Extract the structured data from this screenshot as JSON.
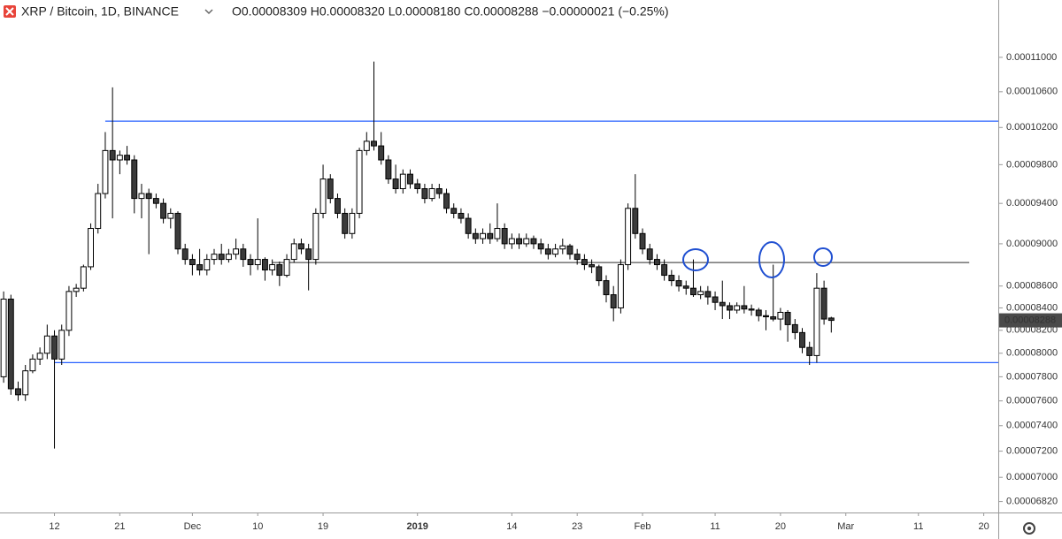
{
  "header": {
    "symbol": "XRP / Bitcoin, 1D, BINANCE",
    "ohlc": "O0.00008309 H0.00008320 L0.00008180 C0.00008288 −0.00000021 (−0.25%)"
  },
  "chart_data": {
    "type": "candlestick",
    "log_scale": true,
    "up_color": "#ffffff",
    "down_color": "#3b3b3b",
    "outline_color": "#000000",
    "x": [
      0,
      1,
      2,
      3,
      4,
      5,
      6,
      7,
      8,
      9,
      10,
      11,
      12,
      13,
      14,
      15,
      16,
      17,
      18,
      19,
      20,
      21,
      22,
      23,
      24,
      25,
      26,
      27,
      28,
      29,
      30,
      31,
      32,
      33,
      34,
      35,
      36,
      37,
      38,
      39,
      40,
      41,
      42,
      43,
      44,
      45,
      46,
      47,
      48,
      49,
      50,
      51,
      52,
      53,
      54,
      55,
      56,
      57,
      58,
      59,
      60,
      61,
      62,
      63,
      64,
      65,
      66,
      67,
      68,
      69,
      70,
      71,
      72,
      73,
      74,
      75,
      76,
      77,
      78,
      79,
      80,
      81,
      82,
      83,
      84,
      85,
      86,
      87,
      88,
      89,
      90,
      91,
      92,
      93,
      94,
      95,
      96,
      97,
      98,
      99,
      100,
      101,
      102,
      103,
      104,
      105,
      106,
      107,
      108,
      109,
      110,
      111,
      112,
      113,
      114
    ],
    "open": [
      7.8e-05,
      8.48e-05,
      7.7e-05,
      7.65e-05,
      7.85e-05,
      7.95e-05,
      8e-05,
      8.15e-05,
      7.95e-05,
      8.2e-05,
      8.55e-05,
      8.58e-05,
      8.78e-05,
      9.15e-05,
      9.5e-05,
      9.95e-05,
      9.85e-05,
      9.9e-05,
      9.85e-05,
      9.45e-05,
      9.5e-05,
      9.45e-05,
      9.4e-05,
      9.25e-05,
      9.3e-05,
      8.95e-05,
      8.85e-05,
      8.8e-05,
      8.75e-05,
      8.85e-05,
      8.9e-05,
      8.85e-05,
      8.9e-05,
      8.95e-05,
      8.85e-05,
      8.8e-05,
      8.85e-05,
      8.75e-05,
      8.8e-05,
      8.7e-05,
      8.85e-05,
      9e-05,
      8.95e-05,
      8.85e-05,
      9.3e-05,
      9.65e-05,
      9.45e-05,
      9.3e-05,
      9.1e-05,
      9.3e-05,
      9.95e-05,
      0.0001005,
      0.0001,
      9.85e-05,
      9.65e-05,
      9.55e-05,
      9.7e-05,
      9.6e-05,
      9.55e-05,
      9.45e-05,
      9.55e-05,
      9.5e-05,
      9.35e-05,
      9.3e-05,
      9.25e-05,
      9.1e-05,
      9.05e-05,
      9.1e-05,
      9.05e-05,
      9.15e-05,
      9e-05,
      9.05e-05,
      9e-05,
      9.05e-05,
      9e-05,
      8.95e-05,
      8.9e-05,
      8.95e-05,
      8.98e-05,
      8.9e-05,
      8.85e-05,
      8.8e-05,
      8.78e-05,
      8.65e-05,
      8.52e-05,
      8.4e-05,
      8.8e-05,
      9.35e-05,
      9.1e-05,
      8.95e-05,
      8.85e-05,
      8.8e-05,
      8.7e-05,
      8.65e-05,
      8.6e-05,
      8.58e-05,
      8.52e-05,
      8.55e-05,
      8.5e-05,
      8.45e-05,
      8.42e-05,
      8.38e-05,
      8.42e-05,
      8.39e-05,
      8.38e-05,
      8.33e-05,
      8.32e-05,
      8.3e-05,
      8.36e-05,
      8.25e-05,
      8.18e-05,
      8.05e-05,
      7.98e-05,
      8.58e-05,
      8.309e-05
    ],
    "high": [
      8.55e-05,
      8.52e-05,
      7.76e-05,
      7.9e-05,
      7.99e-05,
      8.05e-05,
      8.25e-05,
      8.2e-05,
      8.25e-05,
      8.6e-05,
      8.62e-05,
      8.8e-05,
      9.2e-05,
      9.6e-05,
      0.0001015,
      0.0001065,
      9.95e-05,
      0.0001,
      9.9e-05,
      9.6e-05,
      9.55e-05,
      9.5e-05,
      9.45e-05,
      9.35e-05,
      9.32e-05,
      9e-05,
      8.9e-05,
      8.95e-05,
      8.9e-05,
      8.95e-05,
      9e-05,
      8.95e-05,
      9.05e-05,
      9e-05,
      8.9e-05,
      9.25e-05,
      8.87e-05,
      8.85e-05,
      8.83e-05,
      8.9e-05,
      9.05e-05,
      9.05e-05,
      9e-05,
      9.35e-05,
      9.8e-05,
      9.7e-05,
      9.5e-05,
      9.35e-05,
      9.35e-05,
      9.98e-05,
      0.0001015,
      0.0001095,
      0.0001015,
      9.9e-05,
      9.8e-05,
      9.75e-05,
      9.75e-05,
      9.65e-05,
      9.6e-05,
      9.6e-05,
      9.6e-05,
      9.55e-05,
      9.4e-05,
      9.35e-05,
      9.3e-05,
      9.15e-05,
      9.15e-05,
      9.2e-05,
      9.4e-05,
      9.2e-05,
      9.1e-05,
      9.1e-05,
      9.1e-05,
      9.08e-05,
      9.05e-05,
      9e-05,
      9e-05,
      9.05e-05,
      9e-05,
      8.95e-05,
      8.9e-05,
      8.85e-05,
      8.8e-05,
      8.7e-05,
      8.6e-05,
      8.85e-05,
      9.4e-05,
      9.7e-05,
      9.15e-05,
      9e-05,
      8.9e-05,
      8.85e-05,
      8.75e-05,
      8.7e-05,
      8.65e-05,
      8.85e-05,
      8.6e-05,
      8.6e-05,
      8.55e-05,
      8.65e-05,
      8.45e-05,
      8.45e-05,
      8.6e-05,
      8.43e-05,
      8.4e-05,
      8.38e-05,
      8.8e-05,
      8.4e-05,
      8.38e-05,
      8.3e-05,
      8.22e-05,
      8.1e-05,
      8.72e-05,
      8.65e-05,
      8.32e-05
    ],
    "low": [
      7.75e-05,
      7.65e-05,
      7.6e-05,
      7.6e-05,
      7.83e-05,
      7.9e-05,
      7.95e-05,
      7.22e-05,
      7.9e-05,
      8.15e-05,
      8.5e-05,
      8.55e-05,
      8.75e-05,
      9.1e-05,
      9.45e-05,
      9.25e-05,
      9.7e-05,
      9.8e-05,
      9.3e-05,
      9.25e-05,
      8.9e-05,
      9.35e-05,
      9.2e-05,
      9.15e-05,
      8.9e-05,
      8.8e-05,
      8.7e-05,
      8.7e-05,
      8.7e-05,
      8.8e-05,
      8.8e-05,
      8.82e-05,
      8.85e-05,
      8.78e-05,
      8.7e-05,
      8.75e-05,
      8.65e-05,
      8.7e-05,
      8.6e-05,
      8.68e-05,
      8.82e-05,
      8.9e-05,
      8.56e-05,
      8.8e-05,
      9.25e-05,
      9.4e-05,
      9.25e-05,
      9.05e-05,
      9.05e-05,
      9.25e-05,
      9.9e-05,
      9.95e-05,
      9.8e-05,
      9.6e-05,
      9.5e-05,
      9.5e-05,
      9.55e-05,
      9.5e-05,
      9.4e-05,
      9.42e-05,
      9.45e-05,
      9.3e-05,
      9.25e-05,
      9.2e-05,
      9.05e-05,
      9e-05,
      9e-05,
      9e-05,
      9.02e-05,
      8.95e-05,
      8.95e-05,
      8.95e-05,
      8.97e-05,
      8.95e-05,
      8.9e-05,
      8.85e-05,
      8.87e-05,
      8.9e-05,
      8.85e-05,
      8.8e-05,
      8.75e-05,
      8.72e-05,
      8.6e-05,
      8.45e-05,
      8.28e-05,
      8.35e-05,
      8.75e-05,
      9.05e-05,
      8.9e-05,
      8.8e-05,
      8.75e-05,
      8.65e-05,
      8.6e-05,
      8.55e-05,
      8.52e-05,
      8.5e-05,
      8.48e-05,
      8.43e-05,
      8.38e-05,
      8.3e-05,
      8.3e-05,
      8.35e-05,
      8.35e-05,
      8.33e-05,
      8.28e-05,
      8.2e-05,
      8.28e-05,
      8.2e-05,
      8.1e-05,
      8.12e-05,
      8e-05,
      7.9e-05,
      7.92e-05,
      8.25e-05,
      8.18e-05
    ],
    "close": [
      8.48e-05,
      7.7e-05,
      7.65e-05,
      7.85e-05,
      7.95e-05,
      8e-05,
      8.15e-05,
      7.95e-05,
      8.2e-05,
      8.55e-05,
      8.58e-05,
      8.78e-05,
      9.15e-05,
      9.5e-05,
      9.95e-05,
      9.85e-05,
      9.9e-05,
      9.85e-05,
      9.45e-05,
      9.5e-05,
      9.45e-05,
      9.4e-05,
      9.25e-05,
      9.3e-05,
      8.95e-05,
      8.85e-05,
      8.8e-05,
      8.75e-05,
      8.85e-05,
      8.9e-05,
      8.85e-05,
      8.9e-05,
      8.95e-05,
      8.85e-05,
      8.8e-05,
      8.85e-05,
      8.75e-05,
      8.8e-05,
      8.7e-05,
      8.85e-05,
      9e-05,
      8.95e-05,
      8.85e-05,
      9.3e-05,
      9.65e-05,
      9.45e-05,
      9.3e-05,
      9.1e-05,
      9.3e-05,
      9.95e-05,
      0.0001005,
      0.0001,
      9.85e-05,
      9.65e-05,
      9.55e-05,
      9.7e-05,
      9.6e-05,
      9.55e-05,
      9.45e-05,
      9.55e-05,
      9.5e-05,
      9.35e-05,
      9.3e-05,
      9.25e-05,
      9.1e-05,
      9.05e-05,
      9.1e-05,
      9.05e-05,
      9.15e-05,
      9e-05,
      9.05e-05,
      9e-05,
      9.05e-05,
      9e-05,
      8.95e-05,
      8.9e-05,
      8.95e-05,
      8.98e-05,
      8.9e-05,
      8.85e-05,
      8.8e-05,
      8.78e-05,
      8.65e-05,
      8.52e-05,
      8.4e-05,
      8.8e-05,
      9.35e-05,
      9.1e-05,
      8.95e-05,
      8.85e-05,
      8.8e-05,
      8.7e-05,
      8.65e-05,
      8.6e-05,
      8.58e-05,
      8.52e-05,
      8.55e-05,
      8.5e-05,
      8.45e-05,
      8.42e-05,
      8.38e-05,
      8.42e-05,
      8.39e-05,
      8.38e-05,
      8.33e-05,
      8.32e-05,
      8.3e-05,
      8.36e-05,
      8.25e-05,
      8.18e-05,
      8.05e-05,
      7.98e-05,
      8.58e-05,
      8.3e-05,
      8.288e-05
    ],
    "xlim": [
      -0.5,
      137
    ],
    "xticks": [
      {
        "value": 7,
        "label": "12"
      },
      {
        "value": 16,
        "label": "21"
      },
      {
        "value": 26,
        "label": "Dec"
      },
      {
        "value": 35,
        "label": "10"
      },
      {
        "value": 44,
        "label": "19"
      },
      {
        "value": 57,
        "label": "2019"
      },
      {
        "value": 70,
        "label": "14"
      },
      {
        "value": 79,
        "label": "23"
      },
      {
        "value": 88,
        "label": "Feb"
      },
      {
        "value": 98,
        "label": "11"
      },
      {
        "value": 107,
        "label": "20"
      },
      {
        "value": 116,
        "label": "Mar"
      },
      {
        "value": 126,
        "label": "11"
      },
      {
        "value": 135,
        "label": "20"
      }
    ],
    "ylim": [
      6.74e-05,
      0.000117
    ],
    "yticks": [
      {
        "value": 0.00011,
        "label": "0.00011000"
      },
      {
        "value": 0.000106,
        "label": "0.00010600"
      },
      {
        "value": 0.000102,
        "label": "0.00010200"
      },
      {
        "value": 9.8e-05,
        "label": "0.00009800"
      },
      {
        "value": 9.4e-05,
        "label": "0.00009400"
      },
      {
        "value": 9e-05,
        "label": "0.00009000"
      },
      {
        "value": 8.6e-05,
        "label": "0.00008600"
      },
      {
        "value": 8.4e-05,
        "label": "0.00008400"
      },
      {
        "value": 8.2e-05,
        "label": "0.00008200"
      },
      {
        "value": 8e-05,
        "label": "0.00008000"
      },
      {
        "value": 7.8e-05,
        "label": "0.00007800"
      },
      {
        "value": 7.6e-05,
        "label": "0.00007600"
      },
      {
        "value": 7.4e-05,
        "label": "0.00007400"
      },
      {
        "value": 7.2e-05,
        "label": "0.00007200"
      },
      {
        "value": 7e-05,
        "label": "0.00007000"
      },
      {
        "value": 6.82e-05,
        "label": "0.00006820"
      }
    ],
    "levels": [
      {
        "value": 0.0001027,
        "color": "#2962ff",
        "from": 14
      },
      {
        "value": 7.92e-05,
        "color": "#2962ff",
        "from": 7
      },
      {
        "value": 8.82e-05,
        "color": "#555555",
        "from": 37,
        "to": 133
      }
    ]
  }
}
